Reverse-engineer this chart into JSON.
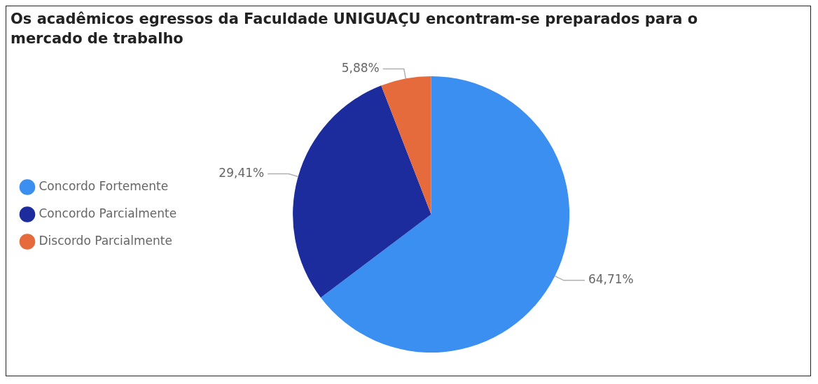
{
  "chart_data": {
    "type": "pie",
    "title": "Os acadêmicos egressos da Faculdade UNIGUAÇU encontram-se preparados para o mercado de trabalho",
    "categories": [
      "Concordo Fortemente",
      "Concordo Parcialmente",
      "Discordo Parcialmente"
    ],
    "values": [
      64.71,
      29.41,
      5.88
    ],
    "colors": [
      "#3a8ff0",
      "#1c2c9c",
      "#e56a3c"
    ],
    "value_labels": [
      "64,71%",
      "29,41%",
      "5,88%"
    ],
    "legend": "left"
  }
}
